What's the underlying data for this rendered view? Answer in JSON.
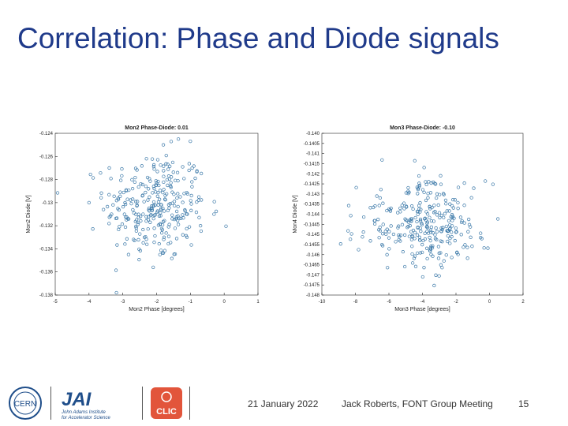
{
  "slide": {
    "title": "Correlation: Phase and Diode signals",
    "date": "21 January 2022",
    "presenter": "Jack Roberts, FONT Group Meeting",
    "page_number": "15"
  },
  "logos": {
    "cern": "CERN",
    "jai_main": "JAI",
    "jai_subtitle_1": "John Adams Institute",
    "jai_subtitle_2": "for Accelerator Science",
    "clic": "CLIC"
  },
  "colors": {
    "title": "#1f3a8a",
    "marker": "#3a78a8",
    "axis": "#222222"
  },
  "chart_data": [
    {
      "type": "scatter",
      "title": "Mon2 Phase-Diode: 0.01",
      "xlabel": "Mon2 Phase [degrees]",
      "ylabel": "Mon2 Diode [V]",
      "xlim": [
        -5,
        1
      ],
      "ylim": [
        -0.138,
        -0.124
      ],
      "x_ticks": [
        "-5",
        "-4",
        "-3",
        "-2",
        "-1",
        "0",
        "1"
      ],
      "y_ticks": [
        "-0.124",
        "-0.126",
        "-0.128",
        "-0.13",
        "-0.132",
        "-0.134",
        "-0.136",
        "-0.138"
      ],
      "grid": false,
      "marker": "open-circle",
      "n_points": 300,
      "points_sample": [
        [
          -2.3,
          -0.1262
        ],
        [
          -2.0,
          -0.1283
        ],
        [
          -1.6,
          -0.1301
        ],
        [
          -2.6,
          -0.1322
        ],
        [
          -1.9,
          -0.1345
        ],
        [
          -2.4,
          -0.131
        ],
        [
          -1.3,
          -0.1295
        ],
        [
          -2.9,
          -0.1289
        ],
        [
          -1.1,
          -0.133
        ],
        [
          -2.1,
          -0.1356
        ],
        [
          -3.4,
          -0.127
        ],
        [
          -0.7,
          -0.132
        ],
        [
          -4.0,
          -0.13
        ],
        [
          -0.3,
          -0.131
        ],
        [
          -1.8,
          -0.125
        ]
      ]
    },
    {
      "type": "scatter",
      "title": "Mon3 Phase-Diode: -0.10",
      "xlabel": "Mon3 Phase [degrees]",
      "ylabel": "Mon4 Diode [V]",
      "xlim": [
        -10,
        2
      ],
      "ylim": [
        -0.1485,
        -0.14
      ],
      "x_ticks": [
        "-10",
        "-8",
        "-6",
        "-4",
        "-2",
        "0",
        "2"
      ],
      "y_ticks": [
        "-0.140",
        "-0.1405",
        "-0.141",
        "-0.1415",
        "-0.142",
        "-0.1425",
        "-0.143",
        "-0.1435",
        "-0.144",
        "-0.1445",
        "-0.145",
        "-0.1455",
        "-0.146",
        "-0.1465",
        "-0.147",
        "-0.1475",
        "-0.148"
      ],
      "grid": false,
      "marker": "open-circle",
      "n_points": 300,
      "points_sample": [
        [
          -4.1,
          -0.144
        ],
        [
          -3.5,
          -0.1452
        ],
        [
          -4.8,
          -0.1431
        ],
        [
          -3.0,
          -0.1463
        ],
        [
          -5.2,
          -0.1448
        ],
        [
          -2.6,
          -0.1437
        ],
        [
          -4.4,
          -0.147
        ],
        [
          -6.0,
          -0.1455
        ],
        [
          -2.0,
          -0.1452
        ],
        [
          -3.9,
          -0.1418
        ],
        [
          -7.5,
          -0.1444
        ],
        [
          -1.2,
          -0.1448
        ],
        [
          -8.4,
          -0.1438
        ],
        [
          -3.3,
          -0.148
        ],
        [
          0.5,
          -0.1445
        ]
      ]
    }
  ]
}
